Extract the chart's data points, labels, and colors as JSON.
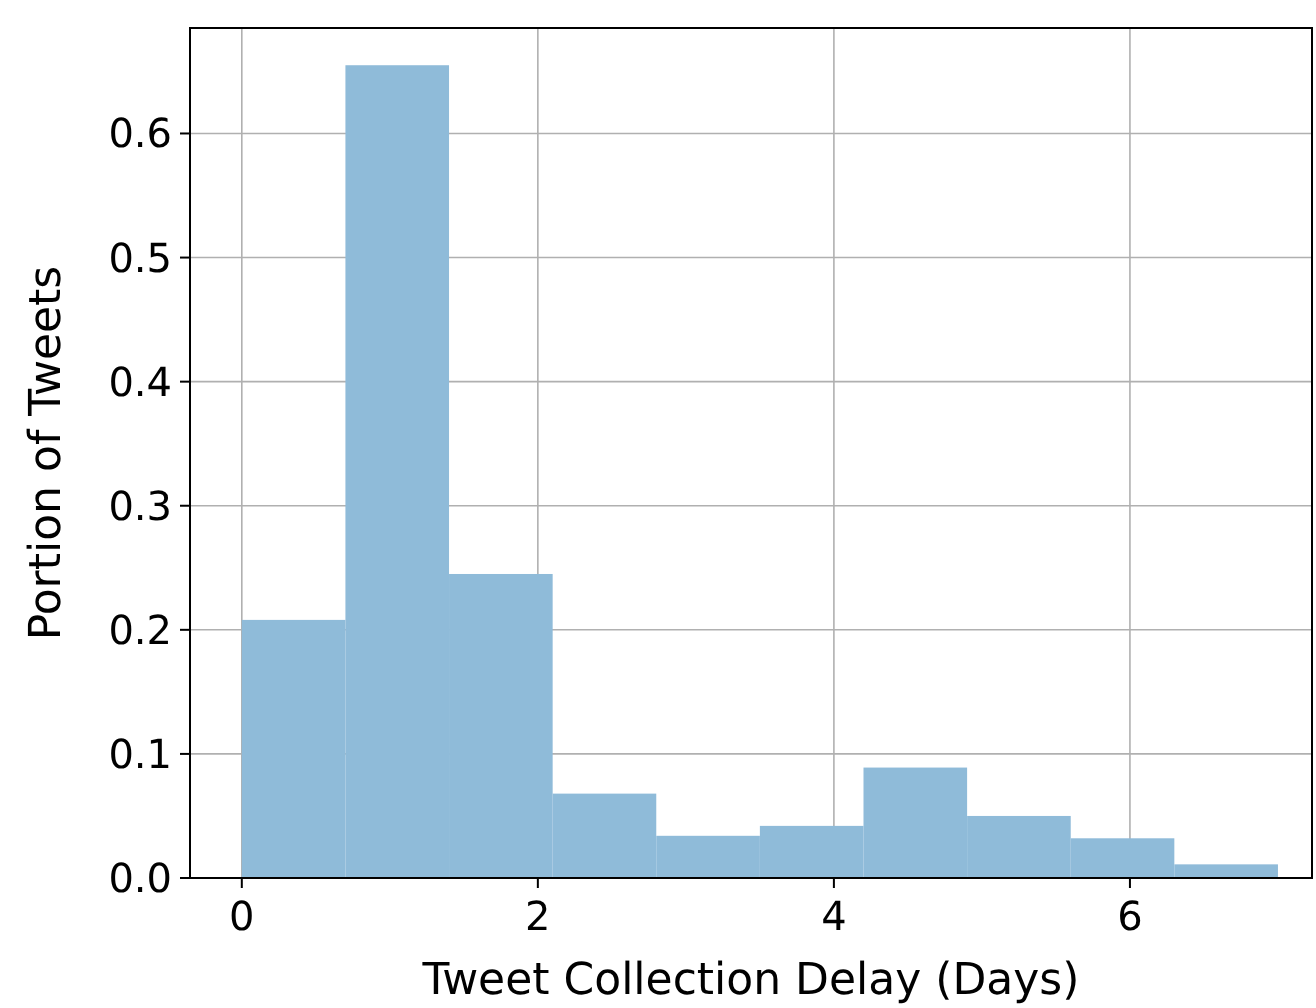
{
  "chart_data": {
    "type": "histogram",
    "xlabel": "Tweet Collection Delay (Days)",
    "ylabel": "Portion of Tweets",
    "bins": [
      0,
      0.7,
      1.4,
      2.1,
      2.8,
      3.5,
      4.2,
      4.9,
      5.6,
      6.3,
      7.0
    ],
    "values": [
      0.208,
      0.655,
      0.245,
      0.068,
      0.034,
      0.042,
      0.089,
      0.05,
      0.032,
      0.011
    ],
    "color": "#8fbbd9",
    "xlim": [
      -0.35,
      7.23
    ],
    "ylim": [
      0,
      0.685
    ],
    "xticks": [
      0,
      2,
      4,
      6
    ],
    "yticks": [
      {
        "value": 0,
        "label": "0.0"
      },
      0.1,
      0.2,
      0.3,
      0.4,
      0.5,
      0.6
    ],
    "grid": true
  }
}
